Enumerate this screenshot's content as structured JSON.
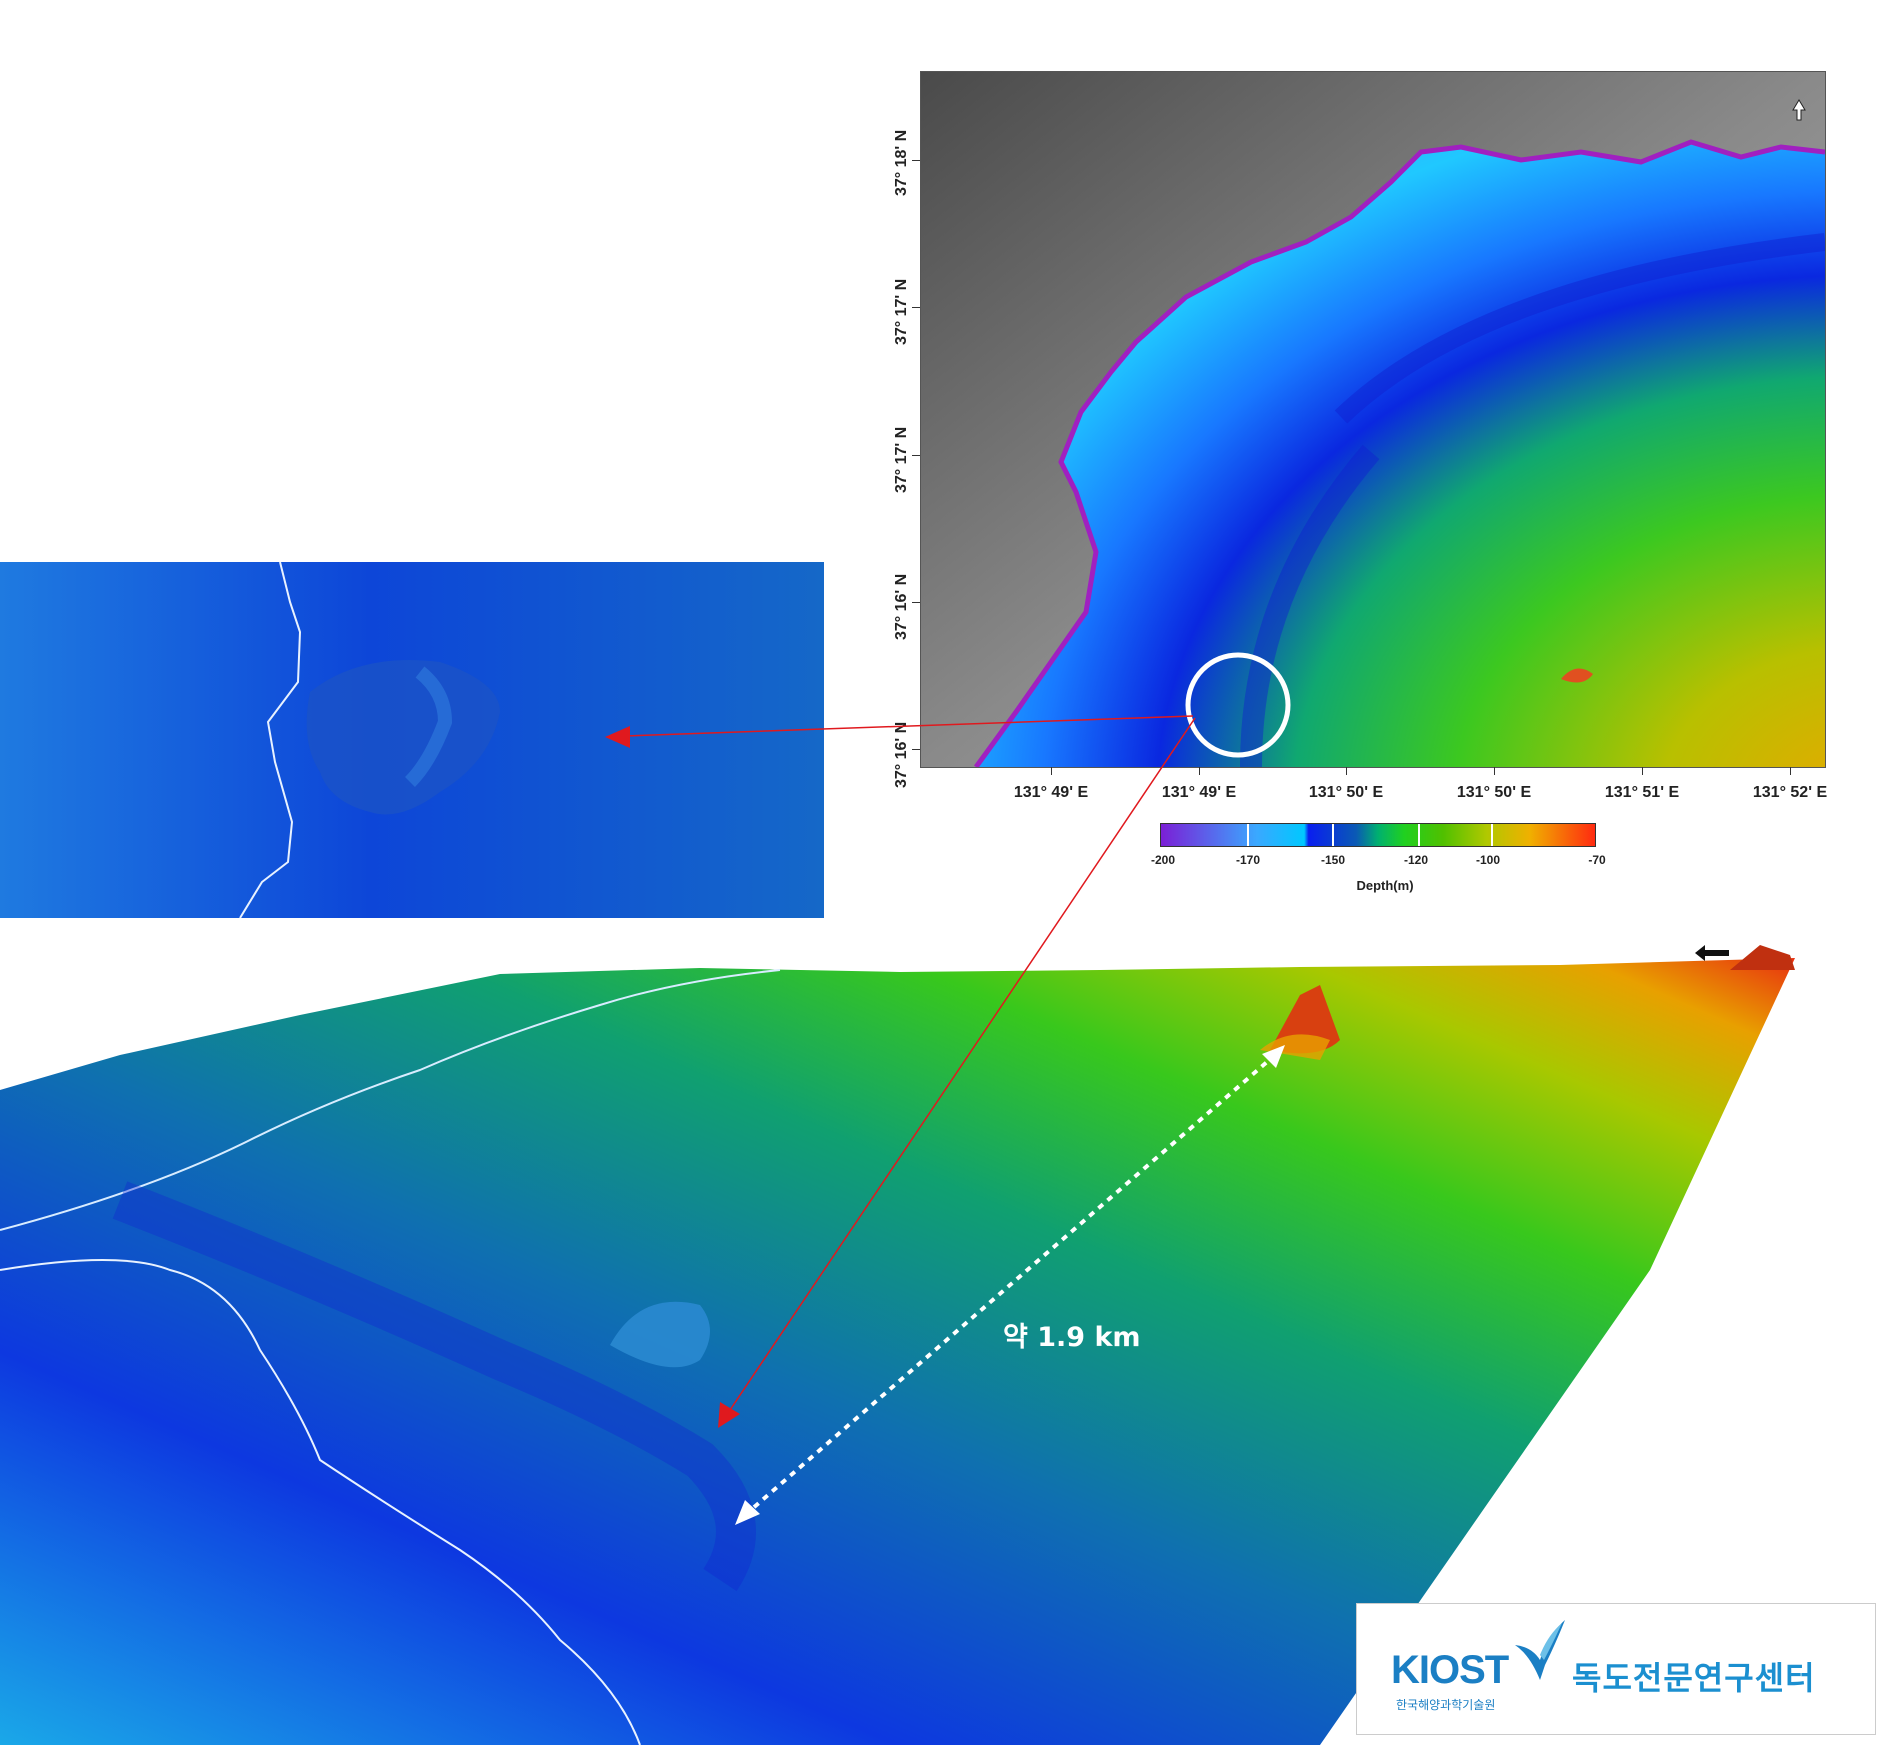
{
  "map": {
    "lat_labels": [
      "37° 18' N",
      "37° 17' N",
      "37° 17' N",
      "37° 16' N",
      "37° 16' N"
    ],
    "lon_labels": [
      "131° 49' E",
      "131° 49' E",
      "131° 50' E",
      "131° 50' E",
      "131° 51' E",
      "131° 52' E"
    ],
    "north_arrow_label": "N"
  },
  "legend": {
    "title": "Depth(m)",
    "ticks": [
      "-200",
      "-170",
      "-150",
      "-120",
      "-100",
      "-70"
    ],
    "colors": [
      "#7b1fd6",
      "#3aa8ff",
      "#0a1ef0",
      "#00b070",
      "#50c000",
      "#f0b000",
      "#ff2a10"
    ]
  },
  "view3d": {
    "distance_label": "약 1.9 km",
    "north_arrow_label": "N"
  },
  "logo": {
    "brand": "KIOST",
    "brand_sub": "한국해양과학기술원",
    "center_name": "독도전문연구센터"
  },
  "colors": {
    "callout_arrow": "#e0191e",
    "circle": "#ffffff",
    "brand_blue": "#1b7fc4"
  }
}
